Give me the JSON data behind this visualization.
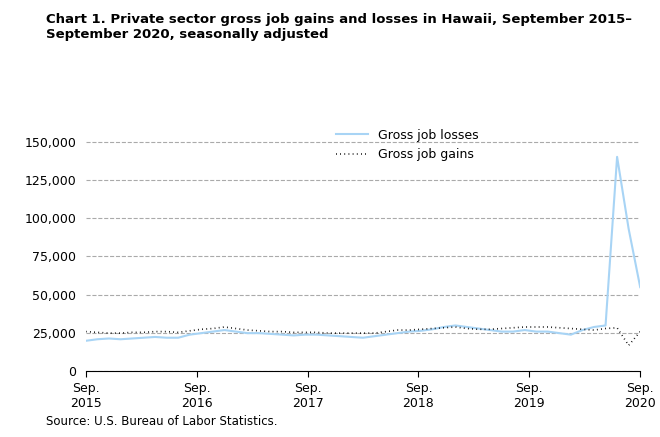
{
  "title": "Chart 1. Private sector gross job gains and losses in Hawaii, September 2015–\nSeptember 2020, seasonally adjusted",
  "source": "Source: U.S. Bureau of Labor Statistics.",
  "legend_labels": [
    "Gross job losses",
    "Gross job gains"
  ],
  "losses_color": "#a8d4f5",
  "gains_color": "#000000",
  "ylim": [
    0,
    162500
  ],
  "yticks": [
    0,
    25000,
    50000,
    75000,
    100000,
    125000,
    150000
  ],
  "ytick_labels": [
    "0",
    "25,000",
    "50,000",
    "75,000",
    "100,000",
    "125,000",
    "150,000"
  ],
  "xtick_positions": [
    0,
    4,
    8,
    12,
    16,
    20
  ],
  "xtick_labels": [
    "Sep.\n2015",
    "Sep.\n2016",
    "Sep.\n2017",
    "Sep.\n2018",
    "Sep.\n2019",
    "Sep.\n2020"
  ],
  "gross_job_losses": [
    20000,
    21000,
    21500,
    21000,
    21500,
    22000,
    22500,
    22000,
    22000,
    24000,
    25000,
    26000,
    27000,
    26000,
    25000,
    25000,
    24500,
    24000,
    23500,
    24000,
    24000,
    23500,
    23000,
    22500,
    22000,
    23000,
    24000,
    25000,
    26000,
    26500,
    27500,
    29000,
    30000,
    29000,
    28000,
    27000,
    26000,
    26000,
    27000,
    26000,
    26000,
    25000,
    24000,
    27000,
    29000,
    30000,
    140000,
    93000,
    55000
  ],
  "gross_job_gains": [
    26000,
    25500,
    25000,
    25000,
    25500,
    25500,
    26000,
    26000,
    25500,
    26500,
    27500,
    28000,
    29000,
    28000,
    27000,
    26500,
    26000,
    26000,
    25500,
    25500,
    25500,
    25000,
    25000,
    25000,
    25000,
    25000,
    26000,
    27000,
    27000,
    27500,
    28000,
    28500,
    29000,
    28000,
    27500,
    27500,
    28000,
    28500,
    29000,
    29000,
    29000,
    28500,
    28000,
    27500,
    27000,
    28000,
    28500,
    17000,
    26000
  ]
}
